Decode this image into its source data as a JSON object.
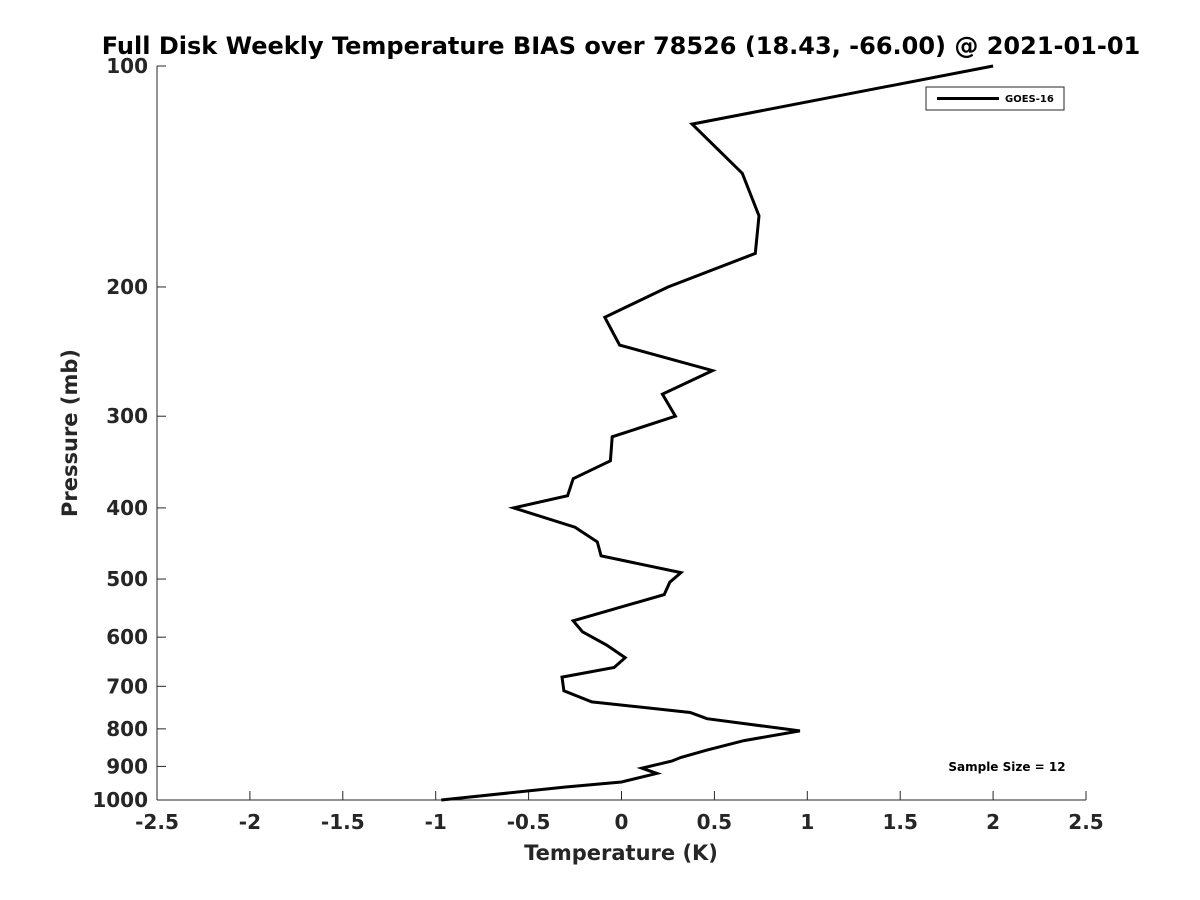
{
  "chart_data": {
    "type": "line",
    "title": "Full Disk Weekly Temperature BIAS over 78526 (18.43, -66.00) @ 2021-01-01",
    "xlabel": "Temperature (K)",
    "ylabel": "Pressure (mb)",
    "xlim": [
      -2.5,
      2.5
    ],
    "ylim": [
      1000,
      100
    ],
    "yscale": "log",
    "y_reversed": true,
    "xticks": [
      "-2.5",
      "-2",
      "-1.5",
      "-1",
      "-0.5",
      "0",
      "0.5",
      "1",
      "1.5",
      "2",
      "2.5"
    ],
    "yticks": [
      "100",
      "200",
      "300",
      "400",
      "500",
      "600",
      "700",
      "800",
      "900",
      "1000"
    ],
    "grid": false,
    "legend_position": "top-right",
    "series": [
      {
        "name": "GOES-16",
        "color": "#000000",
        "points": [
          {
            "t": 2.0,
            "p": 100
          },
          {
            "t": 0.38,
            "p": 120
          },
          {
            "t": 0.65,
            "p": 140
          },
          {
            "t": 0.74,
            "p": 160
          },
          {
            "t": 0.72,
            "p": 180
          },
          {
            "t": 0.25,
            "p": 200
          },
          {
            "t": -0.09,
            "p": 220
          },
          {
            "t": -0.01,
            "p": 240
          },
          {
            "t": 0.49,
            "p": 260
          },
          {
            "t": 0.22,
            "p": 280
          },
          {
            "t": 0.29,
            "p": 300
          },
          {
            "t": -0.05,
            "p": 320
          },
          {
            "t": -0.06,
            "p": 345
          },
          {
            "t": -0.26,
            "p": 365
          },
          {
            "t": -0.29,
            "p": 385
          },
          {
            "t": -0.58,
            "p": 400
          },
          {
            "t": -0.25,
            "p": 425
          },
          {
            "t": -0.13,
            "p": 445
          },
          {
            "t": -0.11,
            "p": 465
          },
          {
            "t": 0.32,
            "p": 490
          },
          {
            "t": 0.26,
            "p": 505
          },
          {
            "t": 0.23,
            "p": 525
          },
          {
            "t": -0.26,
            "p": 570
          },
          {
            "t": -0.21,
            "p": 590
          },
          {
            "t": -0.08,
            "p": 615
          },
          {
            "t": 0.02,
            "p": 640
          },
          {
            "t": -0.04,
            "p": 660
          },
          {
            "t": -0.32,
            "p": 680
          },
          {
            "t": -0.31,
            "p": 710
          },
          {
            "t": -0.16,
            "p": 735
          },
          {
            "t": 0.37,
            "p": 760
          },
          {
            "t": 0.46,
            "p": 775
          },
          {
            "t": 0.96,
            "p": 805
          },
          {
            "t": 0.66,
            "p": 830
          },
          {
            "t": 0.46,
            "p": 855
          },
          {
            "t": 0.32,
            "p": 875
          },
          {
            "t": 0.27,
            "p": 885
          },
          {
            "t": 0.11,
            "p": 905
          },
          {
            "t": 0.19,
            "p": 920
          },
          {
            "t": 0.0,
            "p": 945
          },
          {
            "t": -0.3,
            "p": 960
          },
          {
            "t": -0.97,
            "p": 1000
          }
        ]
      }
    ],
    "annotations": [
      "Sample Size = 12"
    ]
  }
}
